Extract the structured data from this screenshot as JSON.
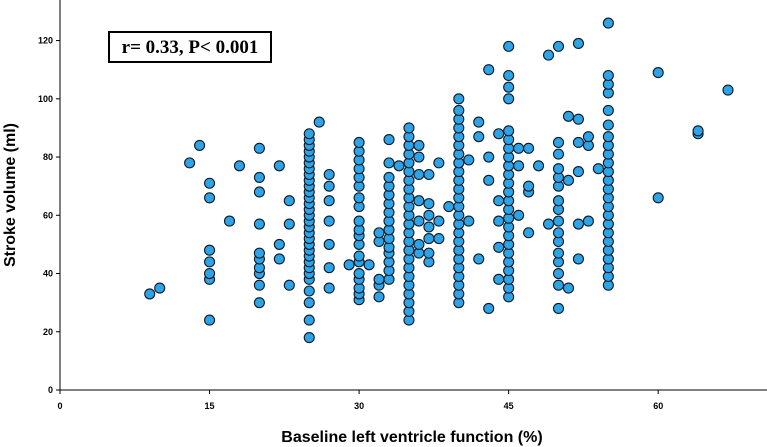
{
  "chart_data": {
    "type": "scatter",
    "title": "",
    "xlabel": "Baseline left ventricle function (%)",
    "ylabel": "Stroke volume (ml)",
    "xlim": [
      0,
      70
    ],
    "ylim": [
      0,
      130
    ],
    "xticks": [
      0,
      15,
      30,
      45,
      60
    ],
    "yticks": [
      0,
      20,
      40,
      60,
      80,
      100,
      120
    ],
    "grid": false,
    "annotation": "r= 0.33, P< 0.001",
    "colors": {
      "marker_fill": "#2ea3e6",
      "marker_edge": "#0d1a26"
    },
    "series": [
      {
        "points": [
          [
            9,
            33
          ],
          [
            10,
            35
          ],
          [
            13,
            78
          ],
          [
            14,
            84
          ],
          [
            15,
            24
          ],
          [
            15,
            38
          ],
          [
            15,
            40
          ],
          [
            15,
            44
          ],
          [
            15,
            48
          ],
          [
            15,
            66
          ],
          [
            15,
            71
          ],
          [
            17,
            58
          ],
          [
            18,
            77
          ],
          [
            20,
            30
          ],
          [
            20,
            36
          ],
          [
            20,
            40
          ],
          [
            20,
            42
          ],
          [
            20,
            45
          ],
          [
            20,
            47
          ],
          [
            20,
            57
          ],
          [
            20,
            68
          ],
          [
            20,
            73
          ],
          [
            20,
            83
          ],
          [
            22,
            45
          ],
          [
            22,
            50
          ],
          [
            22,
            77
          ],
          [
            23,
            36
          ],
          [
            23,
            57
          ],
          [
            23,
            65
          ],
          [
            25,
            18
          ],
          [
            25,
            24
          ],
          [
            25,
            30
          ],
          [
            25,
            34
          ],
          [
            25,
            38
          ],
          [
            25,
            40
          ],
          [
            25,
            42
          ],
          [
            25,
            44
          ],
          [
            25,
            46
          ],
          [
            25,
            48
          ],
          [
            25,
            50
          ],
          [
            25,
            52
          ],
          [
            25,
            54
          ],
          [
            25,
            56
          ],
          [
            25,
            58
          ],
          [
            25,
            60
          ],
          [
            25,
            62
          ],
          [
            25,
            64
          ],
          [
            25,
            66
          ],
          [
            25,
            68
          ],
          [
            25,
            70
          ],
          [
            25,
            72
          ],
          [
            25,
            74
          ],
          [
            25,
            76
          ],
          [
            25,
            78
          ],
          [
            25,
            80
          ],
          [
            25,
            82
          ],
          [
            25,
            84
          ],
          [
            25,
            86
          ],
          [
            25,
            88
          ],
          [
            26,
            92
          ],
          [
            27,
            35
          ],
          [
            27,
            42
          ],
          [
            27,
            50
          ],
          [
            27,
            58
          ],
          [
            27,
            65
          ],
          [
            27,
            70
          ],
          [
            27,
            74
          ],
          [
            29,
            43
          ],
          [
            30,
            31
          ],
          [
            30,
            33
          ],
          [
            30,
            35
          ],
          [
            30,
            38
          ],
          [
            30,
            40
          ],
          [
            30,
            44
          ],
          [
            30,
            46
          ],
          [
            30,
            50
          ],
          [
            30,
            53
          ],
          [
            30,
            55
          ],
          [
            30,
            58
          ],
          [
            30,
            63
          ],
          [
            30,
            66
          ],
          [
            30,
            70
          ],
          [
            30,
            73
          ],
          [
            30,
            76
          ],
          [
            30,
            79
          ],
          [
            30,
            82
          ],
          [
            30,
            85
          ],
          [
            31,
            43
          ],
          [
            32,
            32
          ],
          [
            32,
            36
          ],
          [
            32,
            38
          ],
          [
            32,
            51
          ],
          [
            32,
            54
          ],
          [
            33,
            38
          ],
          [
            33,
            41
          ],
          [
            33,
            44
          ],
          [
            33,
            47
          ],
          [
            33,
            49
          ],
          [
            33,
            52
          ],
          [
            33,
            55
          ],
          [
            33,
            58
          ],
          [
            33,
            61
          ],
          [
            33,
            64
          ],
          [
            33,
            67
          ],
          [
            33,
            70
          ],
          [
            33,
            73
          ],
          [
            33,
            78
          ],
          [
            33,
            86
          ],
          [
            34,
            77
          ],
          [
            35,
            24
          ],
          [
            35,
            27
          ],
          [
            35,
            30
          ],
          [
            35,
            33
          ],
          [
            35,
            36
          ],
          [
            35,
            39
          ],
          [
            35,
            42
          ],
          [
            35,
            45
          ],
          [
            35,
            48
          ],
          [
            35,
            51
          ],
          [
            35,
            54
          ],
          [
            35,
            57
          ],
          [
            35,
            60
          ],
          [
            35,
            63
          ],
          [
            35,
            66
          ],
          [
            35,
            69
          ],
          [
            35,
            72
          ],
          [
            35,
            75
          ],
          [
            35,
            78
          ],
          [
            35,
            81
          ],
          [
            35,
            84
          ],
          [
            35,
            87
          ],
          [
            35,
            90
          ],
          [
            36,
            47
          ],
          [
            36,
            50
          ],
          [
            36,
            58
          ],
          [
            36,
            65
          ],
          [
            36,
            74
          ],
          [
            36,
            80
          ],
          [
            36,
            84
          ],
          [
            37,
            44
          ],
          [
            37,
            47
          ],
          [
            37,
            52
          ],
          [
            37,
            56
          ],
          [
            37,
            60
          ],
          [
            37,
            64
          ],
          [
            37,
            74
          ],
          [
            38,
            52
          ],
          [
            38,
            58
          ],
          [
            38,
            78
          ],
          [
            39,
            63
          ],
          [
            40,
            30
          ],
          [
            40,
            33
          ],
          [
            40,
            36
          ],
          [
            40,
            39
          ],
          [
            40,
            42
          ],
          [
            40,
            45
          ],
          [
            40,
            48
          ],
          [
            40,
            51
          ],
          [
            40,
            54
          ],
          [
            40,
            57
          ],
          [
            40,
            60
          ],
          [
            40,
            63
          ],
          [
            40,
            66
          ],
          [
            40,
            69
          ],
          [
            40,
            72
          ],
          [
            40,
            75
          ],
          [
            40,
            78
          ],
          [
            40,
            81
          ],
          [
            40,
            84
          ],
          [
            40,
            87
          ],
          [
            40,
            90
          ],
          [
            40,
            93
          ],
          [
            40,
            96
          ],
          [
            40,
            100
          ],
          [
            41,
            58
          ],
          [
            41,
            79
          ],
          [
            42,
            45
          ],
          [
            42,
            87
          ],
          [
            42,
            92
          ],
          [
            43,
            28
          ],
          [
            43,
            72
          ],
          [
            43,
            80
          ],
          [
            43,
            110
          ],
          [
            44,
            38
          ],
          [
            44,
            49
          ],
          [
            44,
            58
          ],
          [
            44,
            65
          ],
          [
            44,
            88
          ],
          [
            45,
            32
          ],
          [
            45,
            35
          ],
          [
            45,
            38
          ],
          [
            45,
            41
          ],
          [
            45,
            44
          ],
          [
            45,
            47
          ],
          [
            45,
            50
          ],
          [
            45,
            53
          ],
          [
            45,
            56
          ],
          [
            45,
            59
          ],
          [
            45,
            62
          ],
          [
            45,
            65
          ],
          [
            45,
            68
          ],
          [
            45,
            71
          ],
          [
            45,
            74
          ],
          [
            45,
            77
          ],
          [
            45,
            80
          ],
          [
            45,
            83
          ],
          [
            45,
            86
          ],
          [
            45,
            89
          ],
          [
            45,
            100
          ],
          [
            45,
            104
          ],
          [
            45,
            108
          ],
          [
            45,
            118
          ],
          [
            46,
            60
          ],
          [
            46,
            77
          ],
          [
            46,
            83
          ],
          [
            47,
            54
          ],
          [
            47,
            68
          ],
          [
            47,
            70
          ],
          [
            47,
            83
          ],
          [
            48,
            77
          ],
          [
            49,
            57
          ],
          [
            49,
            115
          ],
          [
            50,
            28
          ],
          [
            50,
            36
          ],
          [
            50,
            40
          ],
          [
            50,
            44
          ],
          [
            50,
            47
          ],
          [
            50,
            51
          ],
          [
            50,
            54
          ],
          [
            50,
            58
          ],
          [
            50,
            62
          ],
          [
            50,
            65
          ],
          [
            50,
            70
          ],
          [
            50,
            73
          ],
          [
            50,
            76
          ],
          [
            50,
            81
          ],
          [
            50,
            85
          ],
          [
            50,
            118
          ],
          [
            51,
            35
          ],
          [
            51,
            72
          ],
          [
            51,
            94
          ],
          [
            52,
            45
          ],
          [
            52,
            57
          ],
          [
            52,
            75
          ],
          [
            52,
            85
          ],
          [
            52,
            93
          ],
          [
            52,
            119
          ],
          [
            53,
            58
          ],
          [
            53,
            84
          ],
          [
            53,
            87
          ],
          [
            54,
            76
          ],
          [
            55,
            36
          ],
          [
            55,
            39
          ],
          [
            55,
            42
          ],
          [
            55,
            45
          ],
          [
            55,
            48
          ],
          [
            55,
            51
          ],
          [
            55,
            54
          ],
          [
            55,
            57
          ],
          [
            55,
            60
          ],
          [
            55,
            63
          ],
          [
            55,
            66
          ],
          [
            55,
            69
          ],
          [
            55,
            72
          ],
          [
            55,
            75
          ],
          [
            55,
            78
          ],
          [
            55,
            81
          ],
          [
            55,
            84
          ],
          [
            55,
            87
          ],
          [
            55,
            91
          ],
          [
            55,
            96
          ],
          [
            55,
            102
          ],
          [
            55,
            105
          ],
          [
            55,
            108
          ],
          [
            55,
            126
          ],
          [
            60,
            66
          ],
          [
            60,
            109
          ],
          [
            64,
            88
          ],
          [
            64,
            89
          ],
          [
            67,
            103
          ]
        ]
      }
    ]
  }
}
